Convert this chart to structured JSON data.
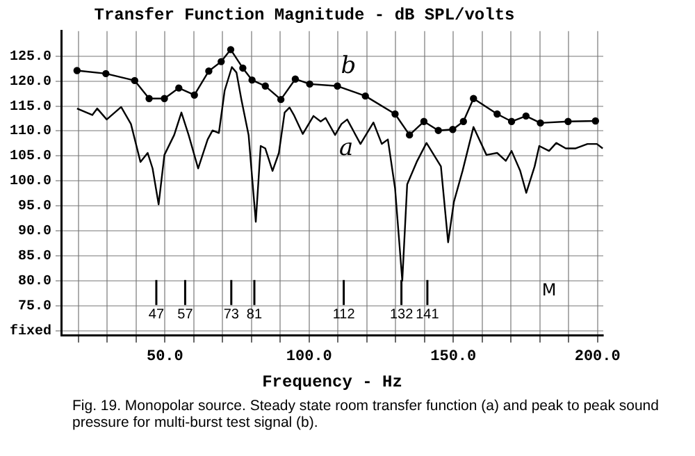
{
  "chart_data": {
    "type": "line",
    "title": "Transfer Function Magnitude - dB SPL/volts",
    "xlabel": "Frequency - Hz",
    "ref_lines": [
      {
        "axis": "x",
        "value": 47,
        "label": "47"
      },
      {
        "axis": "x",
        "value": 57,
        "label": "57"
      },
      {
        "axis": "x",
        "value": 73,
        "label": "73"
      },
      {
        "axis": "x",
        "value": 81,
        "label": "81"
      },
      {
        "axis": "x",
        "value": 112,
        "label": "112"
      },
      {
        "axis": "x",
        "value": 132,
        "label": "132"
      },
      {
        "axis": "x",
        "value": 141,
        "label": "141"
      }
    ],
    "annotations": [
      "M",
      "Fig. 19. Monopolar source. Steady state room transfer function (a) and peak to peak sound pressure for multi-burst test signal (b)."
    ],
    "series": [
      {
        "name": "a",
        "color": "#000000",
        "marker": "none",
        "line_style": "solid",
        "x": [
          19.5,
          24.8,
          26.5,
          29.8,
          34.8,
          38.2,
          41.5,
          44,
          45.7,
          47.8,
          49.8,
          53.2,
          55.7,
          58.2,
          61.5,
          64.8,
          66.5,
          68.7,
          70.7,
          73.2,
          74.8,
          76.5,
          79,
          81.5,
          83.2,
          84.8,
          87.3,
          89.5,
          91.5,
          93.2,
          94.8,
          97.8,
          101.5,
          104,
          105.7,
          109,
          111.2,
          113.2,
          117.8,
          122.3,
          125.2,
          127.3,
          129.8,
          132.3,
          134,
          137.3,
          140.7,
          145.7,
          148.2,
          150.2,
          153.2,
          157,
          161.5,
          165.2,
          168.2,
          170.2,
          173.2,
          175.3,
          178.2,
          179.8,
          183.2,
          185.7,
          189,
          192.3,
          196.5,
          199.8,
          201.8
        ],
        "values": [
          114.5,
          113.2,
          114.5,
          112.3,
          114.8,
          111.4,
          103.8,
          105.6,
          102.5,
          95.3,
          105.2,
          109.2,
          113.7,
          109.2,
          102.5,
          108.3,
          110.1,
          109.6,
          118.1,
          122.8,
          121.7,
          116.3,
          109.2,
          91.8,
          107,
          106.5,
          102,
          105.6,
          113.7,
          114.7,
          113.1,
          109.4,
          113,
          111.9,
          112.6,
          109.2,
          111.4,
          112.3,
          107.4,
          111.7,
          107.4,
          108.3,
          98.5,
          80,
          99.3,
          103.8,
          107.6,
          102.9,
          87.7,
          95.8,
          102,
          110.8,
          105.2,
          105.6,
          104,
          106,
          102,
          97.6,
          102.9,
          107,
          106,
          107.6,
          106.5,
          106.5,
          107.4,
          107.4,
          106.5
        ]
      },
      {
        "name": "b",
        "color": "#000000",
        "marker": "circle",
        "line_style": "solid",
        "x": [
          19.5,
          29.5,
          39.5,
          44.5,
          49.8,
          54.8,
          60.2,
          65.2,
          69.5,
          72.8,
          77,
          80.2,
          84.8,
          90.2,
          95.2,
          100.2,
          109.8,
          119.5,
          129.8,
          134.8,
          139.8,
          144.8,
          149.8,
          153.5,
          157,
          165.2,
          170.2,
          175.2,
          180.2,
          189.8,
          199.3
        ],
        "values": [
          122.1,
          121.5,
          120.1,
          116.5,
          116.5,
          118.6,
          117.2,
          122,
          123.9,
          126.3,
          122.6,
          120.2,
          119,
          116.3,
          120.4,
          119.4,
          119,
          117,
          113.4,
          109.2,
          111.9,
          110.1,
          110.3,
          111.9,
          116.5,
          113.4,
          111.9,
          113,
          111.6,
          111.9,
          112
        ]
      }
    ],
    "xlim": [
      14,
      202
    ],
    "xticks": [
      {
        "value": 20,
        "label": null
      },
      {
        "value": 30,
        "label": null
      },
      {
        "value": 40,
        "label": null
      },
      {
        "value": 50,
        "label": "50.0"
      },
      {
        "value": 60,
        "label": null
      },
      {
        "value": 70,
        "label": null
      },
      {
        "value": 80,
        "label": null
      },
      {
        "value": 90,
        "label": null
      },
      {
        "value": 100,
        "label": "100.0"
      },
      {
        "value": 110,
        "label": null
      },
      {
        "value": 120,
        "label": null
      },
      {
        "value": 130,
        "label": null
      },
      {
        "value": 140,
        "label": null
      },
      {
        "value": 150,
        "label": "150.0"
      },
      {
        "value": 160,
        "label": null
      },
      {
        "value": 170,
        "label": null
      },
      {
        "value": 180,
        "label": null
      },
      {
        "value": 190,
        "label": null
      },
      {
        "value": 200,
        "label": "200.0"
      }
    ],
    "ylim": [
      69,
      130
    ],
    "yticks": [
      {
        "value": 70,
        "label": "fixed"
      },
      {
        "value": 75,
        "label": "75.0"
      },
      {
        "value": 80,
        "label": "80.0"
      },
      {
        "value": 85,
        "label": "85.0"
      },
      {
        "value": 90,
        "label": "90.0"
      },
      {
        "value": 95,
        "label": "95.0"
      },
      {
        "value": 100,
        "label": "100.0"
      },
      {
        "value": 105,
        "label": "105.0"
      },
      {
        "value": 110,
        "label": "110.0"
      },
      {
        "value": 115,
        "label": "115.0"
      },
      {
        "value": 120,
        "label": "120.0"
      },
      {
        "value": 125,
        "label": "125.0"
      }
    ],
    "grid": true,
    "legend": false
  }
}
